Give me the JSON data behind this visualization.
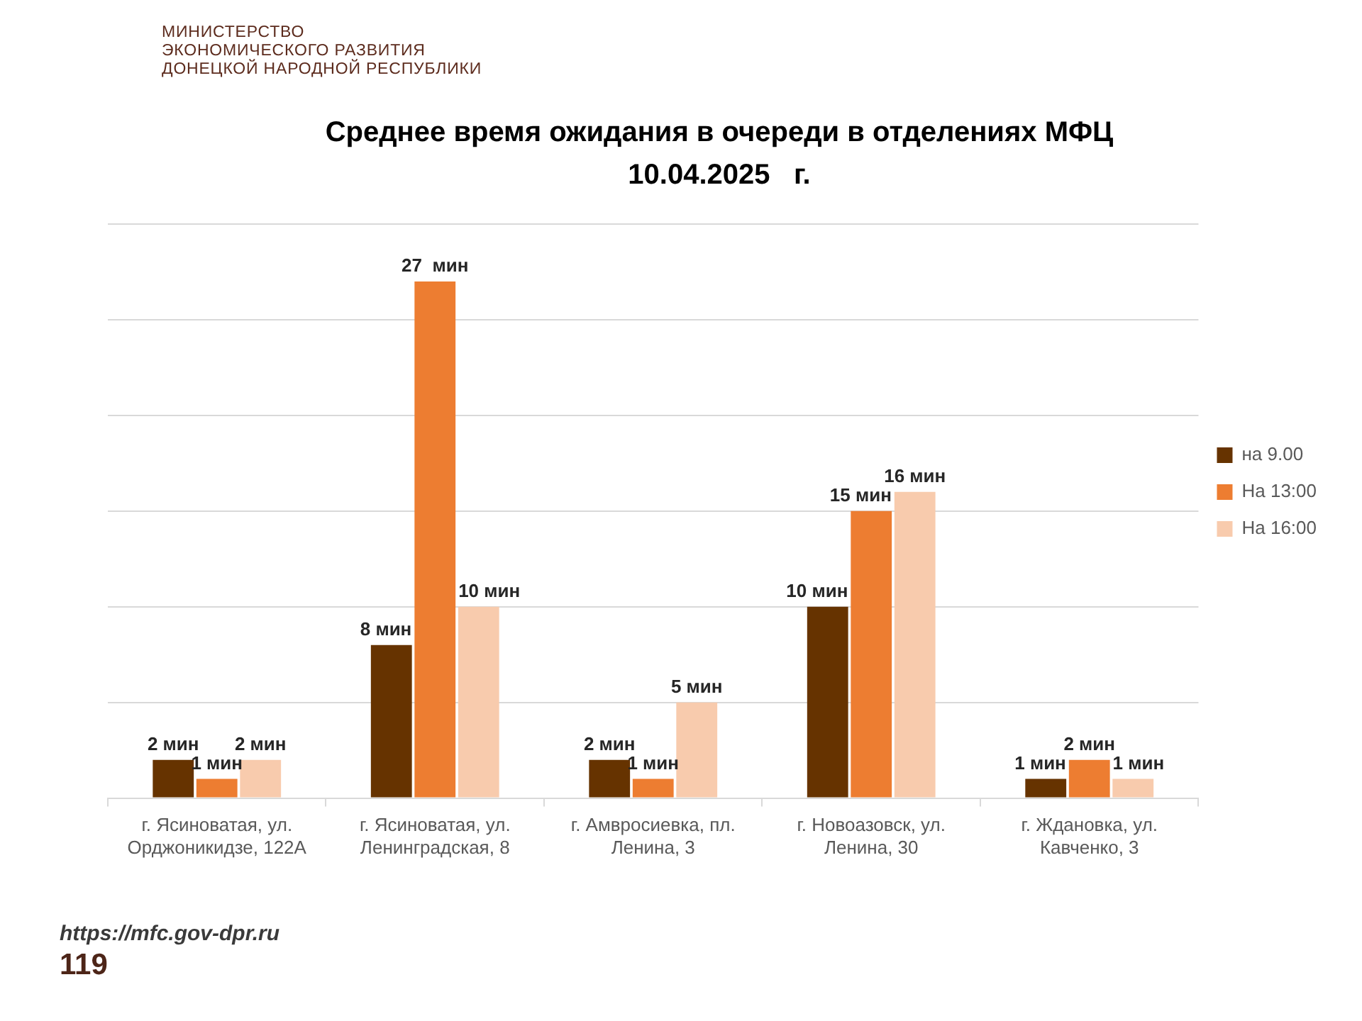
{
  "chart_data": {
    "type": "bar",
    "title": "Среднее время ожидания в очереди в отделениях МФЦ",
    "subtitle": "10.04.2025   г.",
    "categories": [
      "г. Ясиноватая, ул. Орджоникидзе, 122А",
      "г. Ясиноватая, ул. Ленинградская, 8",
      "г. Амвросиевка, пл. Ленина, 3",
      "г. Новоазовск, ул. Ленина, 30",
      "г. Ждановка, ул. Кавченко, 3"
    ],
    "series": [
      {
        "name": "на 9.00",
        "color": "#663300",
        "values": [
          2,
          8,
          2,
          10,
          1
        ],
        "value_labels": [
          "2 мин",
          "8 мин",
          "2 мин",
          "10 мин",
          "1 мин"
        ]
      },
      {
        "name": "На 13:00",
        "color": "#ed7d31",
        "values": [
          1,
          27,
          1,
          15,
          2
        ],
        "value_labels": [
          "1 мин",
          "27  мин",
          "1 мин",
          "15 мин",
          "2 мин"
        ]
      },
      {
        "name": "На 16:00",
        "color": "#f8cbad",
        "values": [
          2,
          10,
          5,
          16,
          1
        ],
        "value_labels": [
          "2 мин",
          "10 мин",
          "5 мин",
          "16 мин",
          "1 мин"
        ]
      }
    ],
    "ylim": [
      0,
      30
    ],
    "yticks": [
      {
        "value": 0,
        "label": null
      },
      {
        "value": 5,
        "label": null
      },
      {
        "value": 10,
        "label": null
      },
      {
        "value": 15,
        "label": null
      },
      {
        "value": 20,
        "label": null
      },
      {
        "value": 25,
        "label": null
      },
      {
        "value": 30,
        "label": null
      }
    ],
    "grid": "y",
    "legend": "right",
    "tick_labels": "x",
    "annotations": [
      "МИНИСТЕРСТВО",
      "ЭКОНОМИЧЕСКОГО РАЗВИТИЯ",
      "ДОНЕЦКОЙ НАРОДНОЙ РЕСПУБЛИКИ",
      "https://mfc.gov-dpr.ru",
      "119"
    ]
  }
}
